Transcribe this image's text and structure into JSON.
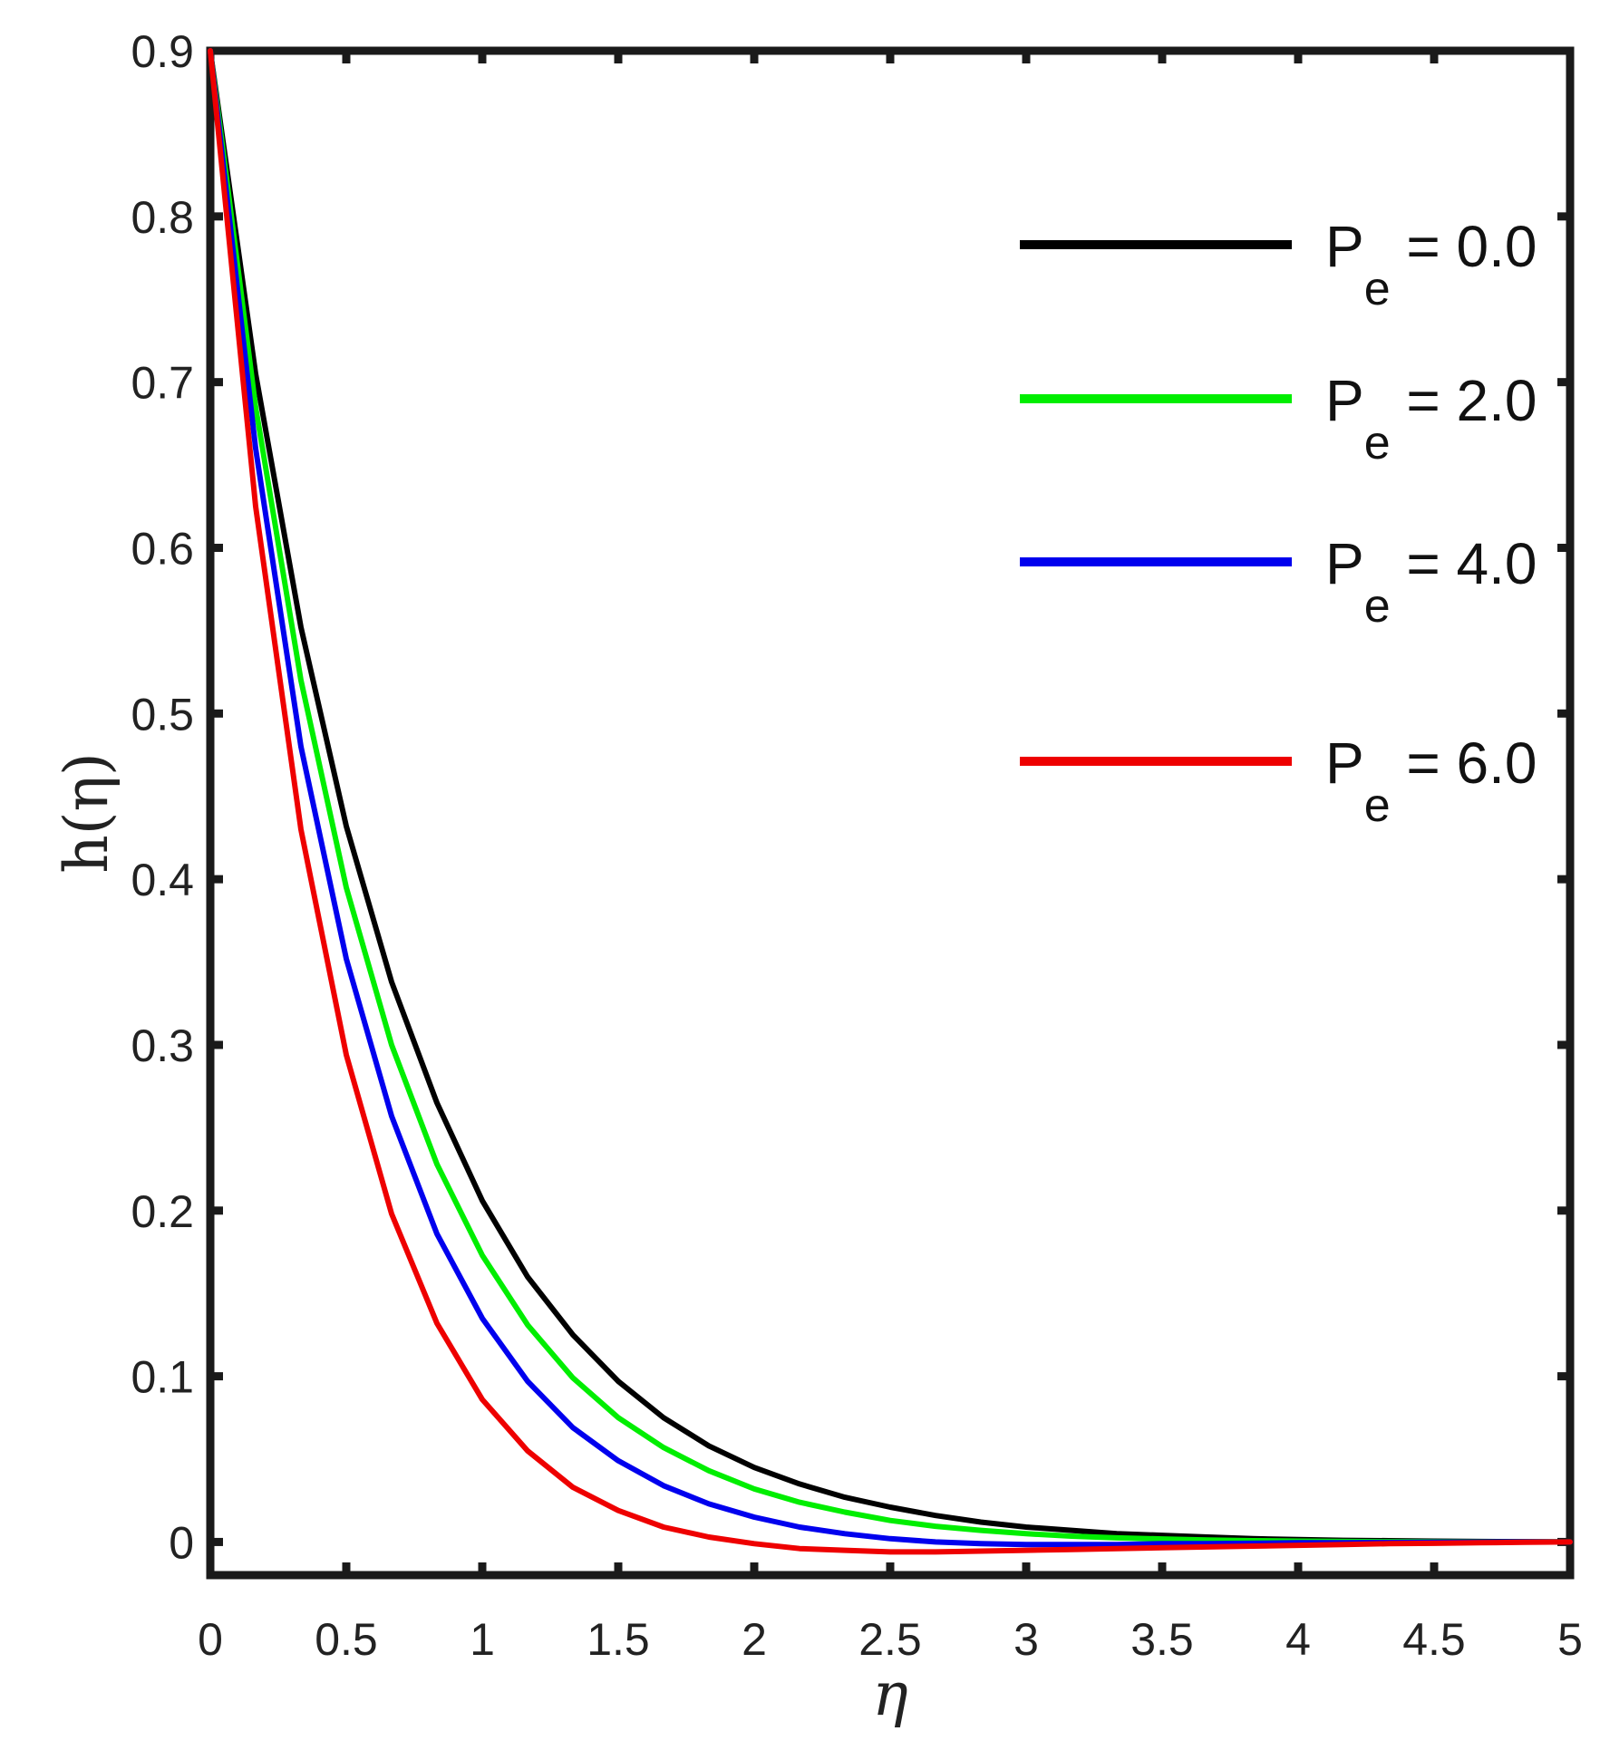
{
  "chart_data": {
    "type": "line",
    "xlabel": "η",
    "ylabel": "h(η)",
    "xlim": [
      0,
      5
    ],
    "ylim": [
      -0.02,
      0.9
    ],
    "xticks": [
      0,
      0.5,
      1,
      1.5,
      2,
      2.5,
      3,
      3.5,
      4,
      4.5,
      5
    ],
    "xtick_labels": [
      "0",
      "0.5",
      "1",
      "1.5",
      "2",
      "2.5",
      "3",
      "3.5",
      "4",
      "4.5",
      "5"
    ],
    "yticks": [
      0,
      0.1,
      0.2,
      0.3,
      0.4,
      0.5,
      0.6,
      0.7,
      0.8,
      0.9
    ],
    "ytick_labels": [
      "0",
      "0.1",
      "0.2",
      "0.3",
      "0.4",
      "0.5",
      "0.6",
      "0.7",
      "0.8",
      "0.9"
    ],
    "grid": false,
    "legend_position": "top-right",
    "x": [
      0,
      0.1667,
      0.3333,
      0.5,
      0.6667,
      0.8333,
      1.0,
      1.1667,
      1.3333,
      1.5,
      1.6667,
      1.8333,
      2.0,
      2.1667,
      2.3333,
      2.5,
      2.6667,
      2.8333,
      3.0,
      3.1667,
      3.3333,
      3.5,
      3.6667,
      3.8333,
      4.0,
      4.1667,
      4.3333,
      4.5,
      4.6667,
      4.8333,
      5.0
    ],
    "series": [
      {
        "name_main": "P",
        "name_sub": "e",
        "name_value": " = 0.0",
        "color": "#000000",
        "values": [
          0.9,
          0.705,
          0.552,
          0.432,
          0.338,
          0.265,
          0.206,
          0.16,
          0.125,
          0.097,
          0.075,
          0.058,
          0.045,
          0.035,
          0.027,
          0.021,
          0.016,
          0.012,
          0.009,
          0.007,
          0.005,
          0.004,
          0.003,
          0.002,
          0.0015,
          0.001,
          0.0008,
          0.0005,
          0.0003,
          0.0002,
          0.0
        ]
      },
      {
        "name_main": "P",
        "name_sub": "e",
        "name_value": " = 2.0",
        "color": "#00ee00",
        "values": [
          0.9,
          0.685,
          0.52,
          0.395,
          0.3,
          0.228,
          0.173,
          0.131,
          0.099,
          0.075,
          0.057,
          0.043,
          0.032,
          0.024,
          0.018,
          0.013,
          0.0095,
          0.007,
          0.005,
          0.0035,
          0.0025,
          0.0018,
          0.0012,
          0.0008,
          0.0005,
          0.0003,
          0.0002,
          0.0001,
          0.0,
          0.0,
          0.0
        ]
      },
      {
        "name_main": "P",
        "name_sub": "e",
        "name_value": " = 4.0",
        "color": "#0000ee",
        "values": [
          0.9,
          0.66,
          0.48,
          0.352,
          0.257,
          0.186,
          0.135,
          0.097,
          0.069,
          0.049,
          0.034,
          0.023,
          0.015,
          0.009,
          0.005,
          0.002,
          0.0,
          -0.001,
          -0.0015,
          -0.0015,
          -0.0015,
          -0.001,
          -0.001,
          -0.0008,
          -0.0005,
          -0.0004,
          -0.0003,
          -0.0002,
          -0.0001,
          0.0,
          0.0
        ]
      },
      {
        "name_main": "P",
        "name_sub": "e",
        "name_value": " = 6.0",
        "color": "#ee0000",
        "values": [
          0.9,
          0.625,
          0.43,
          0.294,
          0.198,
          0.132,
          0.086,
          0.055,
          0.033,
          0.019,
          0.009,
          0.003,
          -0.001,
          -0.004,
          -0.005,
          -0.006,
          -0.006,
          -0.0055,
          -0.005,
          -0.0045,
          -0.004,
          -0.0035,
          -0.003,
          -0.0025,
          -0.002,
          -0.0015,
          -0.001,
          -0.0008,
          -0.0005,
          -0.0002,
          0.0
        ]
      }
    ]
  }
}
